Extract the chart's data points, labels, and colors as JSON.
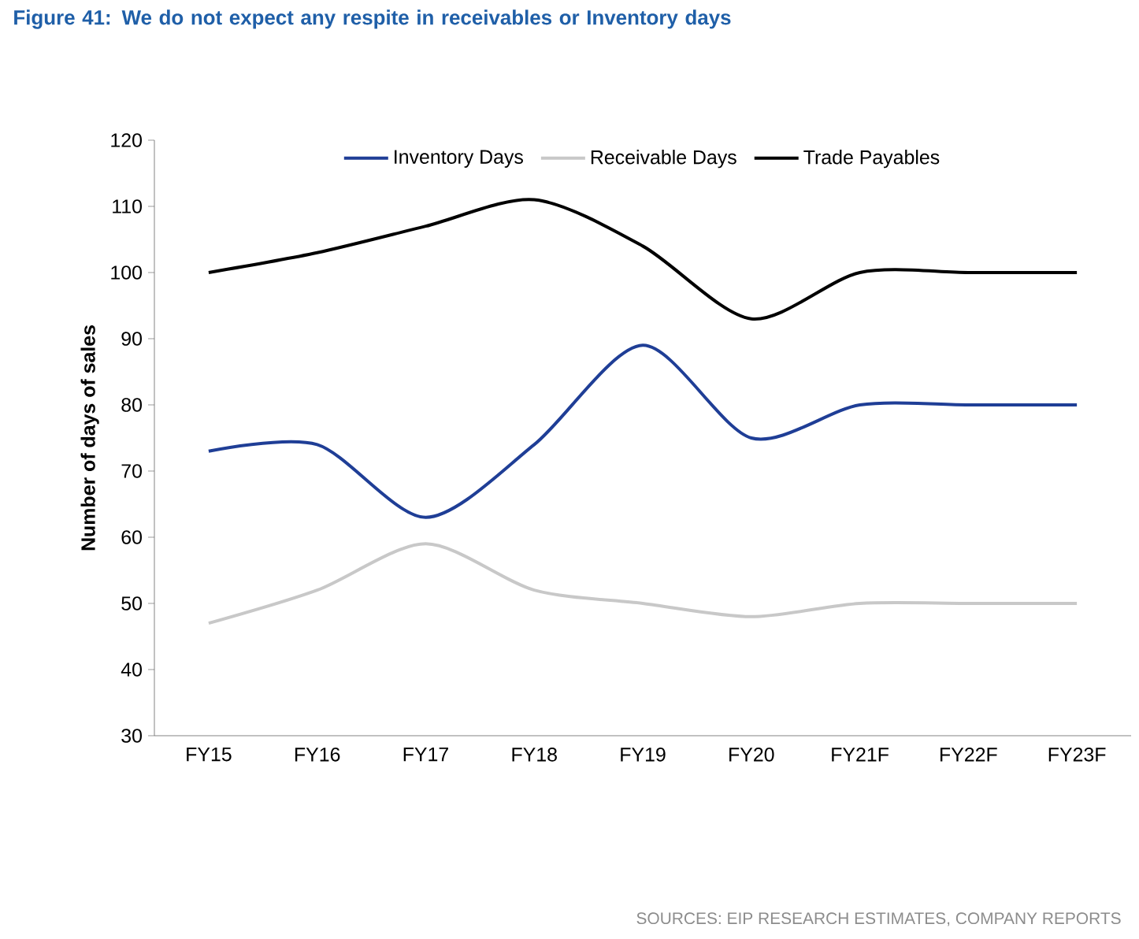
{
  "chart_data": {
    "type": "line",
    "title": "Figure 41: We do not expect any respite in receivables or Inventory days",
    "ylabel": "Number of days of sales",
    "categories": [
      "FY15",
      "FY16",
      "FY17",
      "FY18",
      "FY19",
      "FY20",
      "FY21F",
      "FY22F",
      "FY23F"
    ],
    "series": [
      {
        "name": "Inventory Days",
        "color": "#1f3e96",
        "values": [
          73,
          74,
          63,
          74,
          89,
          75,
          80,
          80,
          80
        ]
      },
      {
        "name": "Receivable Days",
        "color": "#c8c8c8",
        "values": [
          47,
          52,
          59,
          52,
          50,
          48,
          50,
          50,
          50
        ]
      },
      {
        "name": "Trade Payables",
        "color": "#000000",
        "values": [
          100,
          103,
          107,
          111,
          104,
          93,
          100,
          100,
          100
        ]
      }
    ],
    "ylim": [
      30,
      120
    ],
    "yticks": [
      30,
      40,
      50,
      60,
      70,
      80,
      90,
      100,
      110,
      120
    ],
    "legend": "top",
    "annotations": [
      "SOURCES: EIP RESEARCH ESTIMATES, COMPANY REPORTS"
    ]
  }
}
